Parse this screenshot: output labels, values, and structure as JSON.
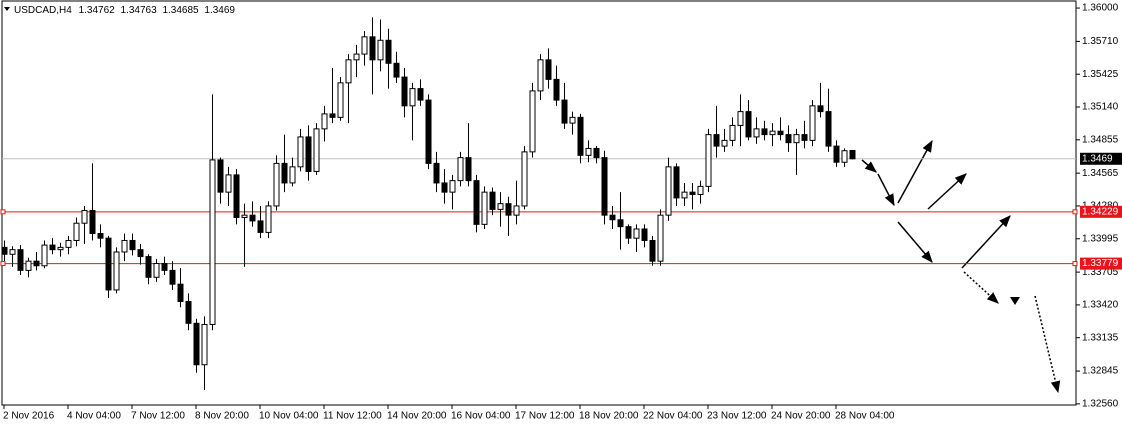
{
  "chart_data": {
    "type": "candlestick",
    "title": "USDCAD,H4",
    "categories": [
      "2 Nov 2016",
      null,
      null,
      null,
      null,
      null,
      null,
      null,
      "4 Nov 04:00",
      null,
      null,
      null,
      null,
      null,
      null,
      null,
      "7 Nov 12:00",
      null,
      null,
      null,
      null,
      null,
      null,
      null,
      "8 Nov 20:00",
      null,
      null,
      null,
      null,
      null,
      null,
      null,
      "10 Nov 04:00",
      null,
      null,
      null,
      null,
      null,
      null,
      null,
      "11 Nov 12:00",
      null,
      null,
      null,
      null,
      null,
      null,
      null,
      "14 Nov 20:00",
      null,
      null,
      null,
      null,
      null,
      null,
      null,
      "16 Nov 04:00",
      null,
      null,
      null,
      null,
      null,
      null,
      null,
      "17 Nov 12:00",
      null,
      null,
      null,
      null,
      null,
      null,
      null,
      "18 Nov 20:00",
      null,
      null,
      null,
      null,
      null,
      null,
      null,
      "22 Nov 04:00",
      null,
      null,
      null,
      null,
      null,
      null,
      null,
      "23 Nov 12:00",
      null,
      null,
      null,
      null,
      null,
      null,
      null,
      "24 Nov 20:00",
      null,
      null,
      null,
      null,
      null,
      null,
      null,
      "28 Nov 04:00",
      null,
      null
    ],
    "open": [
      1.3392,
      1.3386,
      1.339,
      1.3372,
      1.338,
      1.3376,
      1.3394,
      1.339,
      1.3392,
      1.3398,
      1.3413,
      1.3424,
      1.3404,
      1.34,
      1.3355,
      1.3388,
      1.3398,
      1.339,
      1.3384,
      1.3366,
      1.3378,
      1.3372,
      1.336,
      1.3345,
      1.3326,
      1.329,
      1.3325,
      1.3468,
      1.344,
      1.3455,
      1.3418,
      1.342,
      1.3415,
      1.3405,
      1.3428,
      1.3465,
      1.3448,
      1.3462,
      1.3488,
      1.3458,
      1.3495,
      1.3508,
      1.3505,
      1.3535,
      1.3555,
      1.356,
      1.3575,
      1.3555,
      1.3572,
      1.3552,
      1.354,
      1.3515,
      1.353,
      1.352,
      1.3465,
      1.3448,
      1.344,
      1.345,
      1.347,
      1.345,
      1.3412,
      1.344,
      1.3425,
      1.343,
      1.342,
      1.3428,
      1.3475,
      1.3528,
      1.3555,
      1.3538,
      1.352,
      1.35,
      1.3505,
      1.3472,
      1.3478,
      1.347,
      1.342,
      1.3416,
      1.341,
      1.34,
      1.3408,
      1.3398,
      1.338,
      1.342,
      1.3462,
      1.3435,
      1.344,
      1.3438,
      1.3445,
      1.349,
      1.348,
      1.3485,
      1.3498,
      1.351,
      1.3488,
      1.3495,
      1.349,
      1.3493,
      1.349,
      1.3483,
      1.349,
      1.3485,
      1.3515,
      1.351,
      1.348,
      1.3466,
      1.34762
    ],
    "high": [
      1.3398,
      1.3393,
      1.3394,
      1.3383,
      1.3388,
      1.3398,
      1.34,
      1.3396,
      1.3402,
      1.3418,
      1.3428,
      1.3465,
      1.3412,
      1.3402,
      1.3392,
      1.3404,
      1.3404,
      1.3395,
      1.3386,
      1.3382,
      1.3384,
      1.338,
      1.3374,
      1.3352,
      1.333,
      1.3332,
      1.3525,
      1.347,
      1.3462,
      1.346,
      1.343,
      1.3432,
      1.3428,
      1.3432,
      1.3472,
      1.349,
      1.347,
      1.3495,
      1.3498,
      1.35,
      1.3515,
      1.3548,
      1.354,
      1.356,
      1.3568,
      1.358,
      1.3592,
      1.359,
      1.3582,
      1.3562,
      1.3548,
      1.3535,
      1.3538,
      1.3525,
      1.3475,
      1.346,
      1.3455,
      1.3475,
      1.35,
      1.3455,
      1.3445,
      1.3444,
      1.344,
      1.3436,
      1.345,
      1.348,
      1.3535,
      1.356,
      1.3565,
      1.355,
      1.3535,
      1.351,
      1.3508,
      1.3485,
      1.348,
      1.3476,
      1.3428,
      1.344,
      1.3412,
      1.3412,
      1.3412,
      1.3402,
      1.3425,
      1.347,
      1.3465,
      1.3448,
      1.3448,
      1.345,
      1.3495,
      1.3515,
      1.3495,
      1.3505,
      1.3525,
      1.352,
      1.3505,
      1.3502,
      1.35,
      1.3505,
      1.3498,
      1.3495,
      1.3502,
      1.352,
      1.3535,
      1.353,
      1.3485,
      1.3478,
      1.34763
    ],
    "low": [
      1.338,
      1.3375,
      1.3368,
      1.3366,
      1.3372,
      1.3374,
      1.3386,
      1.3384,
      1.3386,
      1.3393,
      1.3395,
      1.3398,
      1.3392,
      1.3348,
      1.3352,
      1.338,
      1.3385,
      1.3377,
      1.336,
      1.3362,
      1.3368,
      1.3355,
      1.334,
      1.332,
      1.3283,
      1.3268,
      1.332,
      1.343,
      1.3428,
      1.3412,
      1.3375,
      1.341,
      1.34,
      1.34,
      1.3424,
      1.344,
      1.3445,
      1.3458,
      1.345,
      1.3455,
      1.3484,
      1.35,
      1.3502,
      1.35,
      1.354,
      1.355,
      1.3525,
      1.3545,
      1.353,
      1.3535,
      1.3505,
      1.3485,
      1.3515,
      1.346,
      1.344,
      1.343,
      1.3425,
      1.3445,
      1.3445,
      1.3405,
      1.3408,
      1.342,
      1.341,
      1.3402,
      1.3412,
      1.3425,
      1.347,
      1.352,
      1.353,
      1.3515,
      1.3495,
      1.349,
      1.3465,
      1.3466,
      1.3465,
      1.3412,
      1.3408,
      1.339,
      1.3395,
      1.3388,
      1.3392,
      1.3376,
      1.3376,
      1.3415,
      1.3428,
      1.3428,
      1.3425,
      1.343,
      1.344,
      1.347,
      1.3475,
      1.348,
      1.348,
      1.3485,
      1.3482,
      1.3485,
      1.348,
      1.3485,
      1.3475,
      1.3455,
      1.3478,
      1.348,
      1.3505,
      1.3475,
      1.3462,
      1.3462,
      1.34685
    ],
    "close": [
      1.3386,
      1.339,
      1.3372,
      1.338,
      1.3376,
      1.3394,
      1.339,
      1.3392,
      1.3398,
      1.3413,
      1.3424,
      1.3404,
      1.34,
      1.3355,
      1.3388,
      1.3398,
      1.339,
      1.3384,
      1.3366,
      1.3378,
      1.3372,
      1.336,
      1.3345,
      1.3326,
      1.329,
      1.3325,
      1.3468,
      1.344,
      1.3455,
      1.3418,
      1.342,
      1.3415,
      1.3405,
      1.3428,
      1.3465,
      1.3448,
      1.3462,
      1.3488,
      1.3458,
      1.3495,
      1.3508,
      1.3505,
      1.3535,
      1.3555,
      1.356,
      1.3575,
      1.3555,
      1.3572,
      1.3552,
      1.354,
      1.3515,
      1.353,
      1.352,
      1.3465,
      1.3448,
      1.344,
      1.345,
      1.347,
      1.345,
      1.3412,
      1.344,
      1.3425,
      1.343,
      1.342,
      1.3428,
      1.3475,
      1.3528,
      1.3555,
      1.3538,
      1.352,
      1.35,
      1.3505,
      1.3472,
      1.3478,
      1.347,
      1.342,
      1.3416,
      1.341,
      1.34,
      1.3408,
      1.3398,
      1.338,
      1.342,
      1.3462,
      1.3435,
      1.344,
      1.3438,
      1.3445,
      1.349,
      1.348,
      1.3485,
      1.3498,
      1.351,
      1.3488,
      1.3495,
      1.349,
      1.3493,
      1.349,
      1.3483,
      1.349,
      1.3485,
      1.3515,
      1.351,
      1.348,
      1.3466,
      1.3476,
      1.3469
    ],
    "bull_color": "#ffffff",
    "bear_color": "#000000",
    "price_line_color": "#c0c0c0",
    "hlines": [
      {
        "value": 1.34229,
        "color": "#e8141b"
      },
      {
        "value": 1.33779,
        "color": "#e8141b"
      }
    ],
    "ylim": [
      1.3255,
      1.3607
    ],
    "yticks": [
      {
        "value": 1.36,
        "label": "1.36000"
      },
      {
        "value": 1.3571,
        "label": "1.35710"
      },
      {
        "value": 1.35425,
        "label": "1.35425"
      },
      {
        "value": 1.3514,
        "label": "1.35140"
      },
      {
        "value": 1.34855,
        "label": "1.34855"
      },
      {
        "value": 1.34565,
        "label": "1.34565"
      },
      {
        "value": 1.3428,
        "label": "1.34280"
      },
      {
        "value": 1.33995,
        "label": "1.33995"
      },
      {
        "value": 1.33705,
        "label": "1.33705"
      },
      {
        "value": 1.3342,
        "label": "1.33420"
      },
      {
        "value": 1.33135,
        "label": "1.33135"
      },
      {
        "value": 1.32845,
        "label": "1.32845"
      },
      {
        "value": 1.3256,
        "label": "1.32560"
      }
    ]
  }
}
